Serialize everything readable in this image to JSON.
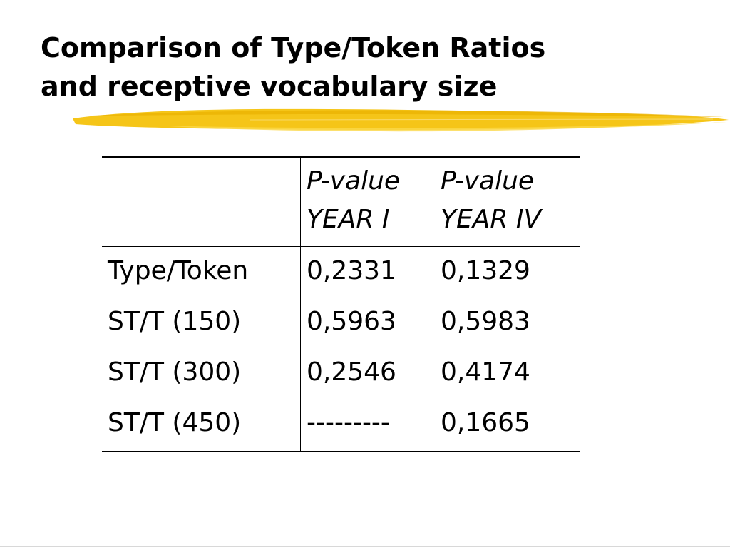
{
  "slide": {
    "title_line1": "Comparison of Type/Token Ratios",
    "title_line2": "and receptive vocabulary size",
    "accent_color": "#f5c518"
  },
  "table": {
    "headers": [
      {
        "line1": "",
        "line2": ""
      },
      {
        "line1": "P-value",
        "line2": "YEAR I"
      },
      {
        "line1": "P-value",
        "line2": "YEAR IV"
      }
    ],
    "rows": [
      {
        "label": "Type/Token",
        "year1": "0,2331",
        "year4": "0,1329"
      },
      {
        "label": "ST/T (150)",
        "year1": "0,5963",
        "year4": "0,5983"
      },
      {
        "label": "ST/T (300)",
        "year1": "0,2546",
        "year4": "0,4174"
      },
      {
        "label": "ST/T (450)",
        "year1": "---------",
        "year4": "0,1665"
      }
    ]
  }
}
